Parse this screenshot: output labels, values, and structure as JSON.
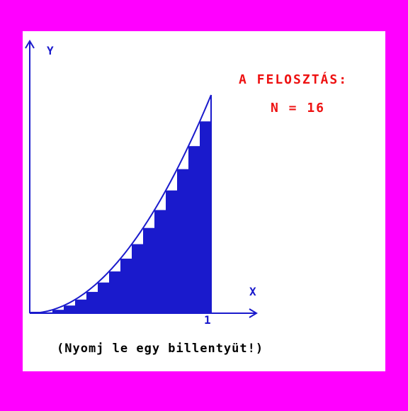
{
  "axes": {
    "y_label": "Y",
    "x_label": "X",
    "x_end_tick": "1"
  },
  "info": {
    "title": "A FELOSZTÁS:",
    "n_text": "N = 16"
  },
  "footer": {
    "prompt": "(Nyomj le egy billentyüt!)"
  },
  "colors": {
    "border": "#ff00ff",
    "background": "#ffffff",
    "plot": "#1a1acc",
    "info_text": "#ee1111",
    "prompt_text": "#000000"
  },
  "chart_data": {
    "type": "area",
    "function": "y = x^2",
    "partitions": 16,
    "xlim": [
      0,
      1
    ],
    "ylim": [
      0,
      1
    ],
    "x_ticks": [
      "1"
    ],
    "xlabel": "X",
    "ylabel": "Y"
  }
}
